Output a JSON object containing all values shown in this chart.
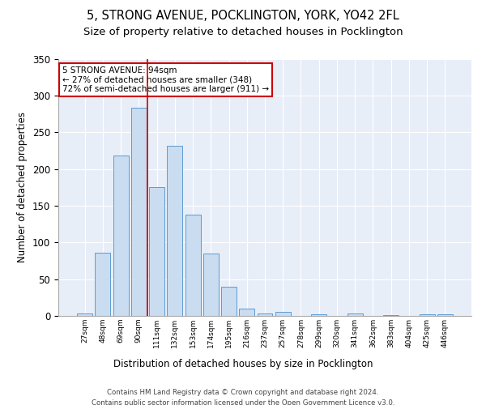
{
  "title1": "5, STRONG AVENUE, POCKLINGTON, YORK, YO42 2FL",
  "title2": "Size of property relative to detached houses in Pocklington",
  "xlabel": "Distribution of detached houses by size in Pocklington",
  "ylabel": "Number of detached properties",
  "bar_labels": [
    "27sqm",
    "48sqm",
    "69sqm",
    "90sqm",
    "111sqm",
    "132sqm",
    "153sqm",
    "174sqm",
    "195sqm",
    "216sqm",
    "237sqm",
    "257sqm",
    "278sqm",
    "299sqm",
    "320sqm",
    "341sqm",
    "362sqm",
    "383sqm",
    "404sqm",
    "425sqm",
    "446sqm"
  ],
  "bar_values": [
    3,
    86,
    218,
    283,
    175,
    232,
    138,
    85,
    40,
    10,
    3,
    5,
    0,
    2,
    0,
    3,
    0,
    1,
    0,
    2,
    2
  ],
  "bar_color": "#c9dcf0",
  "bar_edge_color": "#5b9bd5",
  "vline_x_idx": 3,
  "vline_color": "#cc0000",
  "annotation_line1": "5 STRONG AVENUE: 94sqm",
  "annotation_line2": "← 27% of detached houses are smaller (348)",
  "annotation_line3": "72% of semi-detached houses are larger (911) →",
  "annotation_box_color": "#ffffff",
  "annotation_box_edge": "#cc0000",
  "ylim": [
    0,
    350
  ],
  "yticks": [
    0,
    50,
    100,
    150,
    200,
    250,
    300,
    350
  ],
  "background_color": "#e8eef8",
  "footer1": "Contains HM Land Registry data © Crown copyright and database right 2024.",
  "footer2": "Contains public sector information licensed under the Open Government Licence v3.0.",
  "title1_fontsize": 10.5,
  "title2_fontsize": 9.5
}
